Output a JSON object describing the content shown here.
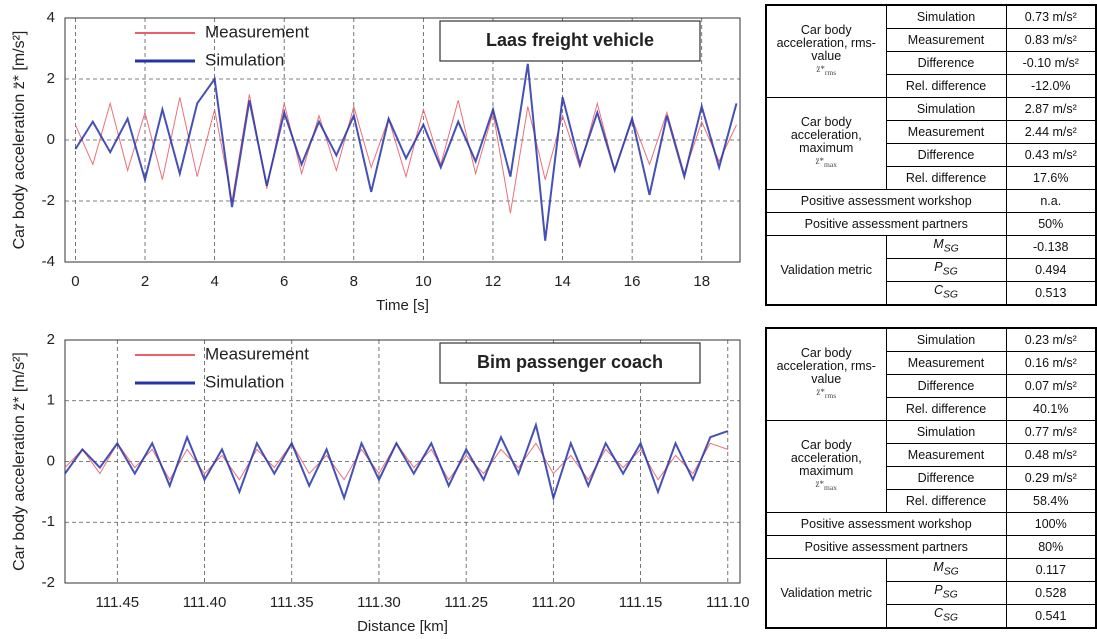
{
  "chart_data": [
    {
      "type": "line",
      "y_label": "Car body acceleration z̈* [m/s²]",
      "x_label": "Time [s]",
      "annotation": "Laas freight vehicle",
      "x": [
        0,
        0.5,
        1,
        1.5,
        2,
        2.5,
        3,
        3.5,
        4,
        4.5,
        5,
        5.5,
        6,
        6.5,
        7,
        7.5,
        8,
        8.5,
        9,
        9.5,
        10,
        10.5,
        11,
        11.5,
        12,
        12.5,
        13,
        13.5,
        14,
        14.5,
        15,
        15.5,
        16,
        16.5,
        17,
        17.5,
        18,
        18.5,
        19
      ],
      "series": [
        {
          "name": "Measurement",
          "color": "#e8606a",
          "width": 1,
          "values": [
            0.5,
            -0.8,
            1.2,
            -1.0,
            0.9,
            -1.3,
            1.4,
            -1.2,
            1.0,
            -2.0,
            1.5,
            -1.6,
            1.2,
            -1.1,
            0.8,
            -1.0,
            1.1,
            -0.9,
            0.7,
            -1.2,
            1.0,
            -0.8,
            1.3,
            -1.1,
            0.9,
            -2.4,
            1.1,
            -1.3,
            0.8,
            -0.9,
            1.2,
            -1.0,
            0.7,
            -0.8,
            0.9,
            -1.1,
            0.6,
            -0.7,
            0.5
          ]
        },
        {
          "name": "Simulation",
          "color": "#2433a8",
          "width": 2,
          "values": [
            -0.3,
            0.6,
            -0.4,
            0.7,
            -1.3,
            1.0,
            -1.1,
            1.2,
            2.0,
            -2.2,
            1.3,
            -1.5,
            0.9,
            -0.8,
            0.6,
            -0.5,
            0.8,
            -1.7,
            0.7,
            -0.6,
            0.5,
            -0.9,
            0.6,
            -0.7,
            1.0,
            -1.2,
            2.5,
            -3.3,
            1.4,
            -0.8,
            0.9,
            -1.0,
            0.7,
            -1.8,
            0.8,
            -1.2,
            1.1,
            -0.9,
            1.2
          ]
        }
      ],
      "xlim": [
        -0.3,
        19.1
      ],
      "xticks": [
        0,
        2,
        4,
        6,
        8,
        10,
        12,
        14,
        16,
        18
      ],
      "ylim": [
        -4,
        4
      ],
      "yticks": [
        -4,
        -2,
        0,
        2,
        4
      ],
      "grid": true,
      "legend": "upper-left"
    },
    {
      "type": "line",
      "y_label": "Car body acceleration z̈* [m/s²]",
      "x_label": "Distance [km]",
      "annotation": "Bim passenger coach",
      "x": [
        111.48,
        111.47,
        111.46,
        111.45,
        111.44,
        111.43,
        111.42,
        111.41,
        111.4,
        111.39,
        111.38,
        111.37,
        111.36,
        111.35,
        111.34,
        111.33,
        111.32,
        111.31,
        111.3,
        111.29,
        111.28,
        111.27,
        111.26,
        111.25,
        111.24,
        111.23,
        111.22,
        111.21,
        111.2,
        111.19,
        111.18,
        111.17,
        111.16,
        111.15,
        111.14,
        111.13,
        111.12,
        111.11,
        111.1
      ],
      "series": [
        {
          "name": "Measurement",
          "color": "#e8606a",
          "width": 1,
          "values": [
            -0.1,
            0.2,
            -0.2,
            0.3,
            -0.1,
            0.2,
            -0.3,
            0.2,
            -0.2,
            0.1,
            -0.3,
            0.2,
            -0.1,
            0.3,
            -0.2,
            0.1,
            -0.3,
            0.2,
            -0.2,
            0.3,
            -0.1,
            0.2,
            -0.3,
            0.1,
            -0.2,
            0.2,
            -0.1,
            0.3,
            -0.2,
            0.1,
            -0.3,
            0.2,
            -0.1,
            0.2,
            -0.3,
            0.1,
            -0.2,
            0.3,
            0.2
          ]
        },
        {
          "name": "Simulation",
          "color": "#2433a8",
          "width": 2,
          "values": [
            -0.2,
            0.2,
            -0.1,
            0.3,
            -0.2,
            0.3,
            -0.4,
            0.4,
            -0.3,
            0.2,
            -0.5,
            0.3,
            -0.2,
            0.3,
            -0.4,
            0.2,
            -0.6,
            0.3,
            -0.3,
            0.3,
            -0.2,
            0.3,
            -0.4,
            0.2,
            -0.3,
            0.4,
            -0.2,
            0.6,
            -0.6,
            0.3,
            -0.4,
            0.3,
            -0.2,
            0.3,
            -0.5,
            0.3,
            -0.3,
            0.4,
            0.5
          ]
        }
      ],
      "xlim": [
        111.48,
        111.093
      ],
      "xticks": [
        111.45,
        {
          "value": 111.4,
          "label": "111.40"
        },
        111.35,
        {
          "value": 111.3,
          "label": "111.30"
        },
        111.25,
        {
          "value": 111.2,
          "label": "111.20"
        },
        111.15,
        {
          "value": 111.1,
          "label": "111.10"
        }
      ],
      "ylim": [
        -2,
        2
      ],
      "yticks": [
        -2,
        -1,
        0,
        1,
        2
      ],
      "grid": true,
      "legend": "upper-left"
    }
  ],
  "tables": [
    {
      "sections": [
        {
          "label": "Car body acceleration, rms-value",
          "symbol": {
            "main": "z̈*",
            "sub": "rms"
          },
          "rows": [
            [
              "Simulation",
              "0.73 m/s²"
            ],
            [
              "Measurement",
              "0.83 m/s²"
            ],
            [
              "Difference",
              "-0.10 m/s²"
            ],
            [
              "Rel. difference",
              "-12.0%"
            ]
          ]
        },
        {
          "label": "Car body acceleration, maximum",
          "symbol": {
            "main": "z̈*",
            "sub": "max"
          },
          "rows": [
            [
              "Simulation",
              "2.87 m/s²"
            ],
            [
              "Measurement",
              "2.44 m/s²"
            ],
            [
              "Difference",
              "0.43 m/s²"
            ],
            [
              "Rel. difference",
              "17.6%"
            ]
          ]
        }
      ],
      "assessments": [
        [
          "Positive assessment workshop",
          "n.a."
        ],
        [
          "Positive assessment partners",
          "50%"
        ]
      ],
      "metric": {
        "label": "Validation metric",
        "rows": [
          [
            {
              "main": "M",
              "sub": "SG"
            },
            "-0.138"
          ],
          [
            {
              "main": "P",
              "sub": "SG"
            },
            "0.494"
          ],
          [
            {
              "main": "C",
              "sub": "SG"
            },
            "0.513"
          ]
        ]
      }
    },
    {
      "sections": [
        {
          "label": "Car body acceleration, rms-value",
          "symbol": {
            "main": "z̈*",
            "sub": "rms"
          },
          "rows": [
            [
              "Simulation",
              "0.23 m/s²"
            ],
            [
              "Measurement",
              "0.16 m/s²"
            ],
            [
              "Difference",
              "0.07 m/s²"
            ],
            [
              "Rel. difference",
              "40.1%"
            ]
          ]
        },
        {
          "label": "Car body acceleration, maximum",
          "symbol": {
            "main": "z̈*",
            "sub": "max"
          },
          "rows": [
            [
              "Simulation",
              "0.77 m/s²"
            ],
            [
              "Measurement",
              "0.48 m/s²"
            ],
            [
              "Difference",
              "0.29 m/s²"
            ],
            [
              "Rel. difference",
              "58.4%"
            ]
          ]
        }
      ],
      "assessments": [
        [
          "Positive assessment workshop",
          "100%"
        ],
        [
          "Positive assessment partners",
          "80%"
        ]
      ],
      "metric": {
        "label": "Validation metric",
        "rows": [
          [
            {
              "main": "M",
              "sub": "SG"
            },
            "0.117"
          ],
          [
            {
              "main": "P",
              "sub": "SG"
            },
            "0.528"
          ],
          [
            {
              "main": "C",
              "sub": "SG"
            },
            "0.541"
          ]
        ]
      }
    }
  ]
}
